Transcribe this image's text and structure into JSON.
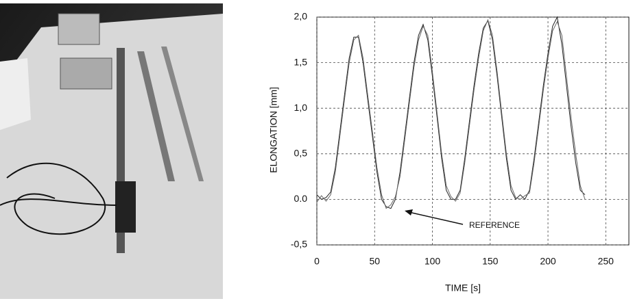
{
  "chart_data": {
    "type": "line",
    "ylabel": "ELONGATION [mm]",
    "xlabel": "TIME [s]",
    "annotation": "REFERENCE",
    "x": [
      0,
      4,
      8,
      12,
      16,
      20,
      24,
      28,
      32,
      36,
      40,
      44,
      48,
      52,
      56,
      60,
      64,
      68,
      72,
      76,
      80,
      84,
      88,
      92,
      96,
      100,
      104,
      108,
      112,
      116,
      120,
      124,
      128,
      132,
      136,
      140,
      144,
      148,
      152,
      156,
      160,
      164,
      168,
      172,
      176,
      180,
      184,
      188,
      192,
      196,
      200,
      204,
      208,
      212,
      216,
      220,
      224,
      228,
      232
    ],
    "series": [
      {
        "color": "#222222",
        "values": [
          0.05,
          0.0,
          0.02,
          0.08,
          0.35,
          0.75,
          1.15,
          1.55,
          1.78,
          1.78,
          1.5,
          1.1,
          0.7,
          0.3,
          0.0,
          -0.08,
          -0.1,
          0.0,
          0.3,
          0.7,
          1.1,
          1.5,
          1.8,
          1.92,
          1.75,
          1.35,
          0.9,
          0.45,
          0.1,
          0.0,
          0.0,
          0.1,
          0.45,
          0.85,
          1.25,
          1.6,
          1.88,
          1.96,
          1.75,
          1.35,
          0.9,
          0.45,
          0.1,
          0.0,
          0.05,
          0.0,
          0.1,
          0.45,
          0.85,
          1.25,
          1.6,
          1.9,
          2.0,
          1.7,
          1.25,
          0.8,
          0.4,
          0.1,
          0.05
        ]
      },
      {
        "color": "#666666",
        "values": [
          -0.03,
          0.04,
          -0.02,
          0.05,
          0.3,
          0.7,
          1.1,
          1.5,
          1.75,
          1.8,
          1.55,
          1.15,
          0.75,
          0.35,
          0.05,
          -0.1,
          -0.06,
          0.03,
          0.25,
          0.65,
          1.05,
          1.45,
          1.75,
          1.9,
          1.8,
          1.4,
          0.95,
          0.5,
          0.15,
          0.03,
          -0.02,
          0.07,
          0.4,
          0.8,
          1.2,
          1.55,
          1.85,
          1.97,
          1.8,
          1.4,
          0.95,
          0.5,
          0.15,
          0.02,
          0.0,
          0.04,
          0.07,
          0.4,
          0.8,
          1.2,
          1.55,
          1.85,
          1.95,
          1.8,
          1.35,
          0.9,
          0.5,
          0.15,
          0.0
        ]
      }
    ],
    "xlim": [
      0,
      270
    ],
    "ylim": [
      -0.5,
      2.0
    ],
    "xticks": [
      0,
      50,
      100,
      150,
      200,
      250
    ],
    "yticks": [
      {
        "value": -0.5,
        "label": "-0,5"
      },
      {
        "value": 0.0,
        "label": "0.0"
      },
      {
        "value": 0.5,
        "label": "0,5"
      },
      {
        "value": 1.0,
        "label": "1,0"
      },
      {
        "value": 1.5,
        "label": "1,5"
      },
      {
        "value": 2.0,
        "label": "2,0"
      }
    ],
    "grid": true
  }
}
